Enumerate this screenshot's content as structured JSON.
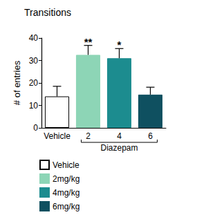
{
  "chart_data": {
    "type": "bar",
    "title": "Transitions",
    "y_label": "# of entries",
    "categories": [
      "Vehicle",
      "2",
      "4",
      "6"
    ],
    "values": [
      14,
      32.5,
      31,
      14.8
    ],
    "errors": [
      4.5,
      4.2,
      4.3,
      3.3
    ],
    "colors": [
      "#ffffff",
      "#8dd5b6",
      "#1c8c8f",
      "#0f5060"
    ],
    "legend_labels": [
      "Vehicle",
      "2mg/kg",
      "4mg/kg",
      "6mg/kg"
    ],
    "legend": "bottom",
    "annotations": [
      {
        "category": "2",
        "text": "**"
      },
      {
        "category": "4",
        "text": "*"
      }
    ],
    "group": {
      "label": "Diazepam",
      "categories": [
        "2",
        "4",
        "6"
      ]
    },
    "ylim": [
      0,
      40
    ],
    "yticks": [
      0,
      10,
      20,
      30,
      40
    ],
    "grid": false
  }
}
